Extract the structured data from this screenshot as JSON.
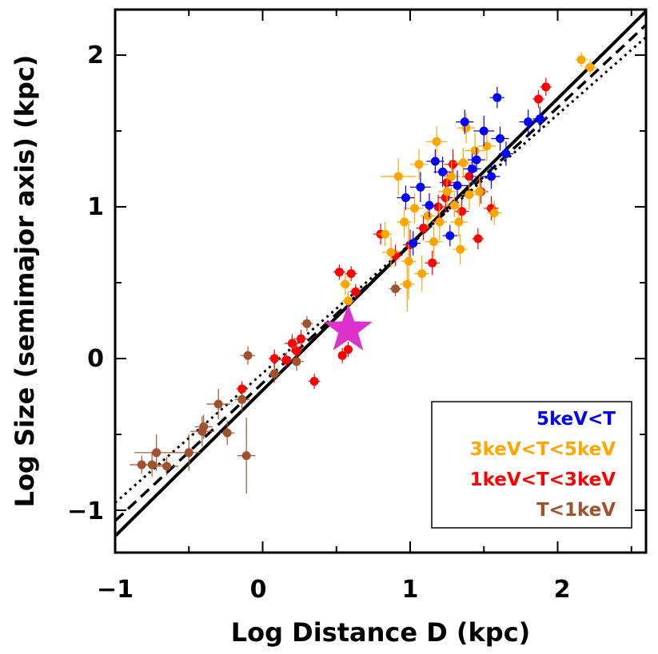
{
  "chart_data": {
    "type": "scatter",
    "title": "",
    "xlabel": "Log Distance D (kpc)",
    "ylabel": "Log Size (semimajor axis) (kpc)",
    "xlim": [
      -1,
      2.6
    ],
    "ylim": [
      -1.3,
      2.3
    ],
    "x_ticks": [
      -1,
      0,
      1,
      2
    ],
    "x_tick_labels": [
      "−1",
      "0",
      "1",
      "2"
    ],
    "y_ticks": [
      -1,
      0,
      1,
      2
    ],
    "y_tick_labels": [
      "−1",
      "0",
      "1",
      "2"
    ],
    "grid": false,
    "legend_position": "bottom-right",
    "legend": [
      {
        "label": "5keV<T",
        "color": "#0000ff"
      },
      {
        "label": "3keV<T<5keV",
        "color": "#ffa500"
      },
      {
        "label": "1keV<T<3keV",
        "color": "#ff0000"
      },
      {
        "label": "T<1keV",
        "color": "#a0522d"
      }
    ],
    "fit_lines": [
      {
        "name": "solid fit",
        "style": "solid",
        "x": [
          -1,
          2.6
        ],
        "y": [
          -1.17,
          2.29
        ]
      },
      {
        "name": "dashed fit",
        "style": "dashed",
        "x": [
          -1,
          2.6
        ],
        "y": [
          -1.07,
          2.2
        ]
      },
      {
        "name": "dotted fit",
        "style": "dotted",
        "x": [
          -1,
          2.6
        ],
        "y": [
          -0.95,
          2.12
        ]
      }
    ],
    "highlight": {
      "name": "star",
      "x": 0.58,
      "y": 0.19,
      "color": "#dd33cc"
    },
    "series": [
      {
        "name": "5keV<T",
        "color": "#0000ff",
        "points": [
          {
            "x": 0.97,
            "y": 1.06,
            "ex": 0.06,
            "ey": 0.08
          },
          {
            "x": 1.02,
            "y": 0.76,
            "ex": 0.05,
            "ey": 0.08
          },
          {
            "x": 1.07,
            "y": 1.13,
            "ex": 0.07,
            "ey": 0.1
          },
          {
            "x": 1.13,
            "y": 1.01,
            "ex": 0.05,
            "ey": 0.08
          },
          {
            "x": 1.17,
            "y": 1.3,
            "ex": 0.06,
            "ey": 0.08
          },
          {
            "x": 1.22,
            "y": 1.23,
            "ex": 0.06,
            "ey": 0.1
          },
          {
            "x": 1.27,
            "y": 0.81,
            "ex": 0.05,
            "ey": 0.07
          },
          {
            "x": 1.32,
            "y": 1.14,
            "ex": 0.07,
            "ey": 0.1
          },
          {
            "x": 1.37,
            "y": 1.56,
            "ex": 0.06,
            "ey": 0.08
          },
          {
            "x": 1.42,
            "y": 1.25,
            "ex": 0.06,
            "ey": 0.1
          },
          {
            "x": 1.45,
            "y": 1.31,
            "ex": 0.06,
            "ey": 0.08
          },
          {
            "x": 1.5,
            "y": 1.5,
            "ex": 0.07,
            "ey": 0.1
          },
          {
            "x": 1.55,
            "y": 1.2,
            "ex": 0.06,
            "ey": 0.08
          },
          {
            "x": 1.59,
            "y": 1.72,
            "ex": 0.05,
            "ey": 0.07
          },
          {
            "x": 1.61,
            "y": 1.45,
            "ex": 0.06,
            "ey": 0.08
          },
          {
            "x": 1.65,
            "y": 1.35,
            "ex": 0.05,
            "ey": 0.08
          },
          {
            "x": 1.8,
            "y": 1.56,
            "ex": 0.06,
            "ey": 0.08
          },
          {
            "x": 1.88,
            "y": 1.58,
            "ex": 0.05,
            "ey": 0.08
          }
        ]
      },
      {
        "name": "3keV<T<5keV",
        "color": "#ffa500",
        "points": [
          {
            "x": 0.56,
            "y": 0.49,
            "ex": 0.04,
            "ey": 0.07
          },
          {
            "x": 0.58,
            "y": 0.38,
            "ex": 0.04,
            "ey": 0.06
          },
          {
            "x": 0.83,
            "y": 0.82,
            "ex": 0.05,
            "ey": 0.08
          },
          {
            "x": 0.87,
            "y": 0.7,
            "ex": 0.06,
            "ey": 0.1
          },
          {
            "x": 0.92,
            "y": 1.2,
            "ex": 0.12,
            "ey": 0.12
          },
          {
            "x": 0.96,
            "y": 0.9,
            "ex": 0.05,
            "ey": 0.1
          },
          {
            "x": 0.99,
            "y": 0.64,
            "ex": 0.05,
            "ey": 0.25
          },
          {
            "x": 0.98,
            "y": 0.49,
            "ex": 0.05,
            "ey": 0.18
          },
          {
            "x": 1.03,
            "y": 0.99,
            "ex": 0.06,
            "ey": 0.1
          },
          {
            "x": 1.06,
            "y": 1.28,
            "ex": 0.06,
            "ey": 0.1
          },
          {
            "x": 1.08,
            "y": 0.56,
            "ex": 0.05,
            "ey": 0.12
          },
          {
            "x": 1.12,
            "y": 0.94,
            "ex": 0.05,
            "ey": 0.08
          },
          {
            "x": 1.16,
            "y": 0.77,
            "ex": 0.06,
            "ey": 0.1
          },
          {
            "x": 1.18,
            "y": 1.43,
            "ex": 0.07,
            "ey": 0.1
          },
          {
            "x": 1.2,
            "y": 0.9,
            "ex": 0.05,
            "ey": 0.12
          },
          {
            "x": 1.25,
            "y": 1.1,
            "ex": 0.06,
            "ey": 0.1
          },
          {
            "x": 1.28,
            "y": 1.2,
            "ex": 0.06,
            "ey": 0.1
          },
          {
            "x": 1.3,
            "y": 1.01,
            "ex": 0.05,
            "ey": 0.08
          },
          {
            "x": 1.33,
            "y": 0.9,
            "ex": 0.06,
            "ey": 0.1
          },
          {
            "x": 1.36,
            "y": 1.29,
            "ex": 0.06,
            "ey": 0.1
          },
          {
            "x": 1.38,
            "y": 1.52,
            "ex": 0.06,
            "ey": 0.1
          },
          {
            "x": 1.4,
            "y": 1.08,
            "ex": 0.05,
            "ey": 0.1
          },
          {
            "x": 1.44,
            "y": 1.37,
            "ex": 0.07,
            "ey": 0.12
          },
          {
            "x": 1.47,
            "y": 1.1,
            "ex": 0.05,
            "ey": 0.1
          },
          {
            "x": 1.52,
            "y": 1.4,
            "ex": 0.06,
            "ey": 0.1
          },
          {
            "x": 1.57,
            "y": 0.96,
            "ex": 0.05,
            "ey": 0.08
          },
          {
            "x": 1.34,
            "y": 0.72,
            "ex": 0.05,
            "ey": 0.1
          },
          {
            "x": 1.45,
            "y": 1.31,
            "ex": 0.05,
            "ey": 0.08
          },
          {
            "x": 2.16,
            "y": 1.97,
            "ex": 0.04,
            "ey": 0.05
          },
          {
            "x": 2.22,
            "y": 1.92,
            "ex": 0.04,
            "ey": 0.05
          }
        ]
      },
      {
        "name": "1keV<T<3keV",
        "color": "#ff0000",
        "points": [
          {
            "x": 0.08,
            "y": 0.0,
            "ex": 0.04,
            "ey": 0.06
          },
          {
            "x": 0.16,
            "y": -0.01,
            "ex": 0.04,
            "ey": 0.05
          },
          {
            "x": 0.2,
            "y": 0.1,
            "ex": 0.05,
            "ey": 0.06
          },
          {
            "x": 0.23,
            "y": 0.05,
            "ex": 0.04,
            "ey": 0.05
          },
          {
            "x": 0.26,
            "y": 0.13,
            "ex": 0.05,
            "ey": 0.06
          },
          {
            "x": 0.35,
            "y": -0.15,
            "ex": 0.04,
            "ey": 0.05
          },
          {
            "x": 0.52,
            "y": 0.57,
            "ex": 0.04,
            "ey": 0.05
          },
          {
            "x": 0.6,
            "y": 0.56,
            "ex": 0.04,
            "ey": 0.05
          },
          {
            "x": 0.54,
            "y": 0.02,
            "ex": 0.03,
            "ey": 0.05
          },
          {
            "x": 0.58,
            "y": 0.06,
            "ex": 0.03,
            "ey": 0.05
          },
          {
            "x": 0.63,
            "y": 0.44,
            "ex": 0.04,
            "ey": 0.05
          },
          {
            "x": -0.14,
            "y": -0.2,
            "ex": 0.04,
            "ey": 0.05
          },
          {
            "x": 0.8,
            "y": 0.82,
            "ex": 0.05,
            "ey": 0.07
          },
          {
            "x": 0.9,
            "y": 0.68,
            "ex": 0.05,
            "ey": 0.07
          },
          {
            "x": 1.0,
            "y": 0.75,
            "ex": 0.05,
            "ey": 0.1
          },
          {
            "x": 1.09,
            "y": 0.86,
            "ex": 0.05,
            "ey": 0.08
          },
          {
            "x": 1.15,
            "y": 0.63,
            "ex": 0.05,
            "ey": 0.08
          },
          {
            "x": 1.19,
            "y": 1.0,
            "ex": 0.05,
            "ey": 0.08
          },
          {
            "x": 1.24,
            "y": 1.06,
            "ex": 0.05,
            "ey": 0.1
          },
          {
            "x": 1.29,
            "y": 1.28,
            "ex": 0.06,
            "ey": 0.1
          },
          {
            "x": 1.35,
            "y": 0.97,
            "ex": 0.05,
            "ey": 0.08
          },
          {
            "x": 1.4,
            "y": 1.2,
            "ex": 0.05,
            "ey": 0.08
          },
          {
            "x": 1.46,
            "y": 0.79,
            "ex": 0.04,
            "ey": 0.07
          },
          {
            "x": 1.48,
            "y": 1.1,
            "ex": 0.05,
            "ey": 0.08
          },
          {
            "x": 1.55,
            "y": 0.99,
            "ex": 0.05,
            "ey": 0.08
          },
          {
            "x": 1.87,
            "y": 1.71,
            "ex": 0.04,
            "ey": 0.06
          },
          {
            "x": 1.92,
            "y": 1.79,
            "ex": 0.04,
            "ey": 0.06
          },
          {
            "x": 1.25,
            "y": 1.16,
            "ex": 0.05,
            "ey": 0.08
          }
        ]
      },
      {
        "name": "T<1keV",
        "color": "#a0522d",
        "points": [
          {
            "x": -0.75,
            "y": -0.7,
            "ex": 0.08,
            "ey": 0.08
          },
          {
            "x": -0.82,
            "y": -0.7,
            "ex": 0.08,
            "ey": 0.06
          },
          {
            "x": -0.72,
            "y": -0.62,
            "ex": 0.15,
            "ey": 0.12
          },
          {
            "x": -0.65,
            "y": -0.71,
            "ex": 0.08,
            "ey": 0.06
          },
          {
            "x": -0.5,
            "y": -0.62,
            "ex": 0.08,
            "ey": 0.12
          },
          {
            "x": -0.41,
            "y": -0.48,
            "ex": 0.08,
            "ey": 0.1
          },
          {
            "x": -0.4,
            "y": -0.45,
            "ex": 0.06,
            "ey": 0.08
          },
          {
            "x": -0.3,
            "y": -0.3,
            "ex": 0.08,
            "ey": 0.1
          },
          {
            "x": -0.24,
            "y": -0.49,
            "ex": 0.05,
            "ey": 0.08
          },
          {
            "x": -0.14,
            "y": -0.27,
            "ex": 0.05,
            "ey": 0.08
          },
          {
            "x": -0.1,
            "y": 0.02,
            "ex": 0.05,
            "ey": 0.06
          },
          {
            "x": -0.11,
            "y": -0.64,
            "ex": 0.06,
            "ey": 0.25
          },
          {
            "x": 0.08,
            "y": -0.1,
            "ex": 0.04,
            "ey": 0.06
          },
          {
            "x": 0.23,
            "y": -0.02,
            "ex": 0.05,
            "ey": 0.06
          },
          {
            "x": 0.3,
            "y": 0.23,
            "ex": 0.04,
            "ey": 0.05
          },
          {
            "x": 0.9,
            "y": 0.46,
            "ex": 0.04,
            "ey": 0.05
          }
        ]
      }
    ]
  }
}
